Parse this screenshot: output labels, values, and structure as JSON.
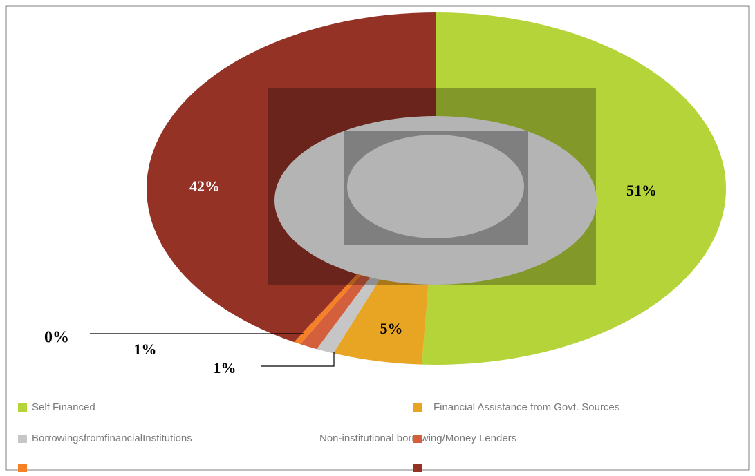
{
  "chart_data": {
    "type": "pie",
    "categories": [
      "Self Financed",
      "Financial Assistance from Govt. Sources",
      "BorrowingsfromfinancialInstitutions",
      "Non-institutional borrowing/Money Lenders",
      null,
      null
    ],
    "values": [
      51,
      5,
      1,
      1,
      0.4,
      42
    ],
    "value_labels": [
      "51%",
      "5%",
      "1%",
      "1%",
      "0%",
      "42%"
    ],
    "colors": [
      "#b5d43a",
      "#e8a524",
      "#c6c6c6",
      "#d35f3c",
      "#f58025",
      "#953226"
    ],
    "legend": "bottom"
  }
}
